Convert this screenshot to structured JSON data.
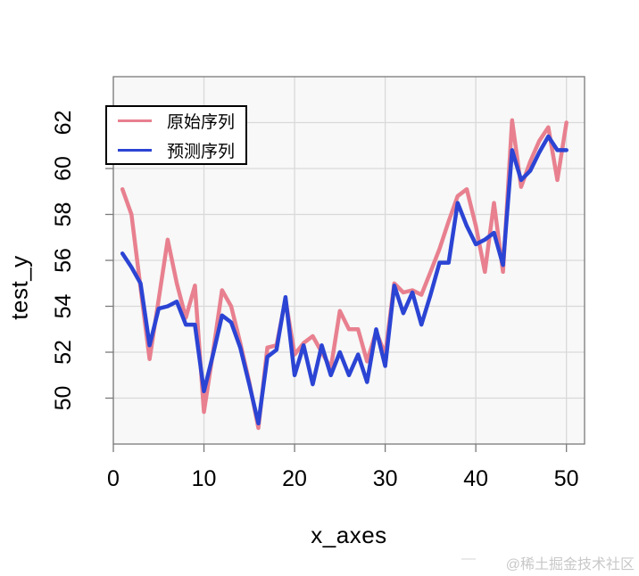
{
  "watermark": {
    "text": "@稀土掘金技术社区",
    "dash": "—"
  },
  "chart_data": {
    "type": "line",
    "title": "",
    "xlabel": "x_axes",
    "ylabel": "test_y",
    "xlim": [
      0,
      52
    ],
    "ylim": [
      48,
      64
    ],
    "xticks": [
      "0",
      "10",
      "20",
      "30",
      "40",
      "50"
    ],
    "xtick_values": [
      0,
      10,
      20,
      30,
      40,
      50
    ],
    "yticks": [
      "50",
      "52",
      "54",
      "56",
      "58",
      "60",
      "62"
    ],
    "ytick_values": [
      50,
      52,
      54,
      56,
      58,
      60,
      62
    ],
    "grid": true,
    "legend_position": "top-left",
    "panel_bg": "#f7f8f7",
    "grid_color": "#d9d9d9",
    "frame_color": "#7a7a7a",
    "x": [
      1,
      2,
      3,
      4,
      5,
      6,
      7,
      8,
      9,
      10,
      11,
      12,
      13,
      14,
      15,
      16,
      17,
      18,
      19,
      20,
      21,
      22,
      23,
      24,
      25,
      26,
      27,
      28,
      29,
      30,
      31,
      32,
      33,
      34,
      35,
      36,
      37,
      38,
      39,
      40,
      41,
      42,
      43,
      44,
      45,
      46,
      47,
      48,
      49,
      50
    ],
    "series": [
      {
        "name": "原始序列",
        "color": "#e8808f",
        "values": [
          59.1,
          58.0,
          54.8,
          51.7,
          54.3,
          56.9,
          55.0,
          53.5,
          54.9,
          49.4,
          52.0,
          54.7,
          54.0,
          52.4,
          50.7,
          48.7,
          52.2,
          52.3,
          54.3,
          51.9,
          52.4,
          52.7,
          52.0,
          51.3,
          53.8,
          53.0,
          53.0,
          51.6,
          52.9,
          51.9,
          55.0,
          54.6,
          54.7,
          54.5,
          55.5,
          56.5,
          57.7,
          58.8,
          59.1,
          57.5,
          55.5,
          58.5,
          55.5,
          62.1,
          59.2,
          60.3,
          61.2,
          61.8,
          59.5,
          62.0
        ]
      },
      {
        "name": "预测序列",
        "color": "#2b44d4",
        "values": [
          56.3,
          55.7,
          55.0,
          52.3,
          53.9,
          54.0,
          54.2,
          53.2,
          53.2,
          50.3,
          51.9,
          53.6,
          53.3,
          52.2,
          50.6,
          48.9,
          51.8,
          52.1,
          54.4,
          51.0,
          52.3,
          50.6,
          52.3,
          51.0,
          52.0,
          51.0,
          51.9,
          50.7,
          53.0,
          51.4,
          54.9,
          53.7,
          54.6,
          53.2,
          54.5,
          55.9,
          55.9,
          58.5,
          57.5,
          56.7,
          56.9,
          57.2,
          55.8,
          60.8,
          59.5,
          59.9,
          60.7,
          61.4,
          60.8,
          60.8
        ]
      }
    ]
  }
}
